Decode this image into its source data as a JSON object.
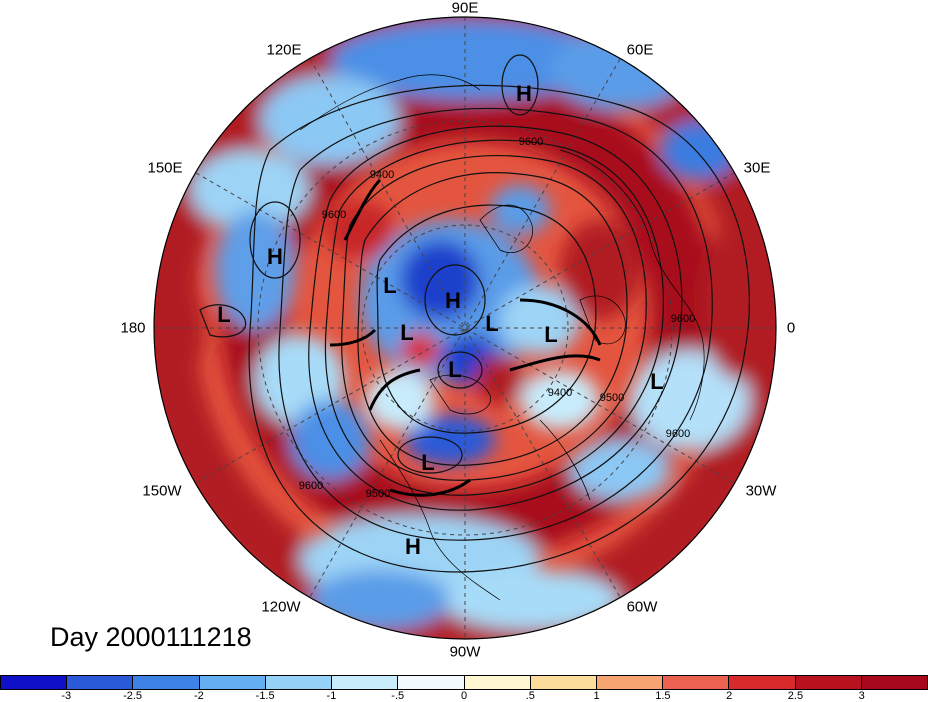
{
  "title": "Day 2000111218",
  "longitude_labels": {
    "top": "90E",
    "upper_left": "120E",
    "upper_right": "60E",
    "left_upper": "150E",
    "right_upper": "30E",
    "left": "180",
    "right": "0",
    "left_lower": "150W",
    "right_lower": "30W",
    "lower_left": "120W",
    "lower_right": "60W",
    "bottom": "90W"
  },
  "pressure_centers": [
    "H",
    "H",
    "L",
    "L",
    "L",
    "H",
    "L",
    "L",
    "L",
    "L",
    "L",
    "H"
  ],
  "contour_labels": [
    "9600",
    "9400",
    "9600",
    "9600",
    "9400",
    "9500",
    "9600",
    "9600",
    "9500"
  ],
  "colorbar": {
    "ticks": [
      "-3",
      "-2.5",
      "-2",
      "-1.5",
      "-1",
      "-.5",
      "0",
      ".5",
      "1",
      "1.5",
      "2",
      "2.5",
      "3"
    ],
    "colors": [
      "#1010c8",
      "#2a5ad8",
      "#3f82e6",
      "#66aef2",
      "#96d2f8",
      "#c8ecfc",
      "#f2fafe",
      "#fff6d2",
      "#fcdc9a",
      "#f6a472",
      "#ec6250",
      "#d82a2a",
      "#a8081c"
    ]
  }
}
